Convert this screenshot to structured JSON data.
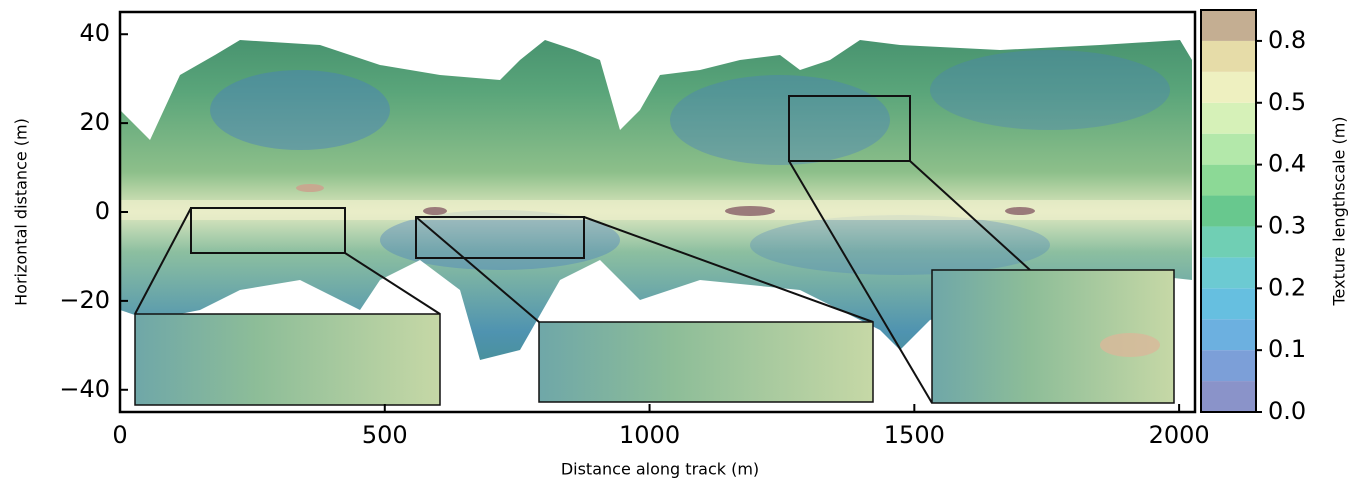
{
  "chart_data": {
    "type": "image",
    "xlabel": "Distance along track (m)",
    "ylabel": "Horizontal distance (m)",
    "xlim": [
      0,
      2030
    ],
    "ylim": [
      -45,
      45
    ],
    "xticks": [
      0,
      500,
      1000,
      1500,
      2000
    ],
    "yticks": [
      {
        "value": -40,
        "label": "−40"
      },
      {
        "value": -20,
        "label": "−20"
      },
      0,
      20,
      40
    ],
    "colorbar": {
      "label": "Texture lengthscale (m)",
      "boundaries": [
        0,
        0.05,
        0.1,
        0.15,
        0.2,
        0.25,
        0.3,
        0.35,
        0.4,
        0.45,
        0.5,
        0.6,
        0.8,
        1.0
      ],
      "colors": [
        "#8a93c9",
        "#7c9fd8",
        "#6cb0e0",
        "#66bfe0",
        "#6ccad2",
        "#70cfb4",
        "#68c88e",
        "#8cd996",
        "#b3e8aa",
        "#d6f1b8",
        "#eef0c0",
        "#e6dca8",
        "#c4ae92",
        "#e2dada"
      ],
      "ticks": [
        {
          "value": 0,
          "label": "0.0"
        },
        0.1,
        0.2,
        0.3,
        0.4,
        0.5,
        0.8
      ]
    }
  }
}
